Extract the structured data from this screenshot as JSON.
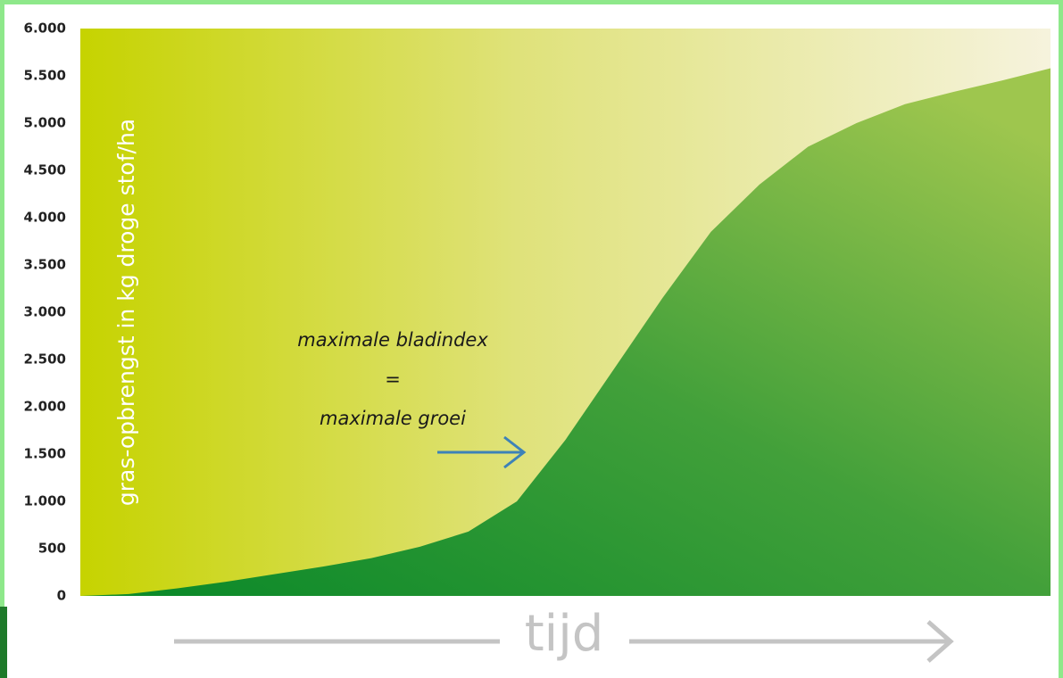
{
  "chart_data": {
    "type": "area",
    "y_label": "gras-opbrengst in kg droge stof/ha",
    "x_label": "tijd",
    "annotations": [
      "maximale bladindex",
      "=",
      "maximale groei"
    ],
    "categories": [
      null,
      null,
      null,
      null,
      null,
      null,
      null,
      null,
      null,
      null,
      null,
      null,
      null,
      null,
      null,
      null,
      null,
      null,
      null,
      null,
      null
    ],
    "values": [
      0,
      20,
      80,
      150,
      230,
      310,
      400,
      520,
      680,
      1000,
      1650,
      2400,
      3150,
      3850,
      4350,
      4750,
      5000,
      5200,
      5330,
      5450,
      5580
    ],
    "color": "#3f9a35",
    "ylim": [
      0,
      6000
    ],
    "yticks": [
      0,
      500,
      {
        "value": 1000,
        "label": "1.000"
      },
      {
        "value": 1500,
        "label": "1.500"
      },
      {
        "value": 2000,
        "label": "2.000"
      },
      {
        "value": 2500,
        "label": "2.500"
      },
      {
        "value": 3000,
        "label": "3.000"
      },
      {
        "value": 3500,
        "label": "3.500"
      },
      {
        "value": 4000,
        "label": "4.000"
      },
      {
        "value": 4500,
        "label": "4.500"
      },
      {
        "value": 5000,
        "label": "5.000"
      },
      {
        "value": 5500,
        "label": "5.500"
      },
      {
        "value": 6000,
        "label": "6.000"
      }
    ],
    "grid": false
  }
}
